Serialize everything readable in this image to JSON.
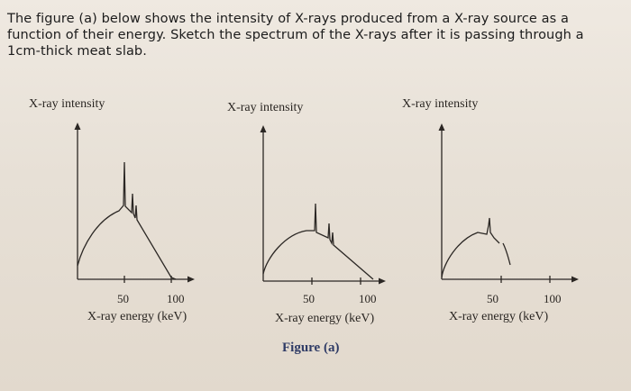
{
  "question": {
    "text": "The figure (a) below shows the intensity of X-rays produced from a X-ray source as a function of their energy. Sketch the spectrum of the X-rays after it is passing through a 1cm-thick meat slab."
  },
  "figure": {
    "caption": "Figure (a)",
    "panels": [
      {
        "ylabel": "X-ray intensity",
        "xlabel": "X-ray energy (keV)",
        "ticks": [
          "50",
          "100"
        ]
      },
      {
        "ylabel": "X-ray intensity",
        "xlabel": "X-ray energy (keV)",
        "ticks": [
          "50",
          "100"
        ]
      },
      {
        "ylabel": "X-ray intensity",
        "xlabel": "X-ray energy (keV)",
        "ticks": [
          "50",
          "100"
        ]
      }
    ],
    "line_color": "#2b2724"
  }
}
